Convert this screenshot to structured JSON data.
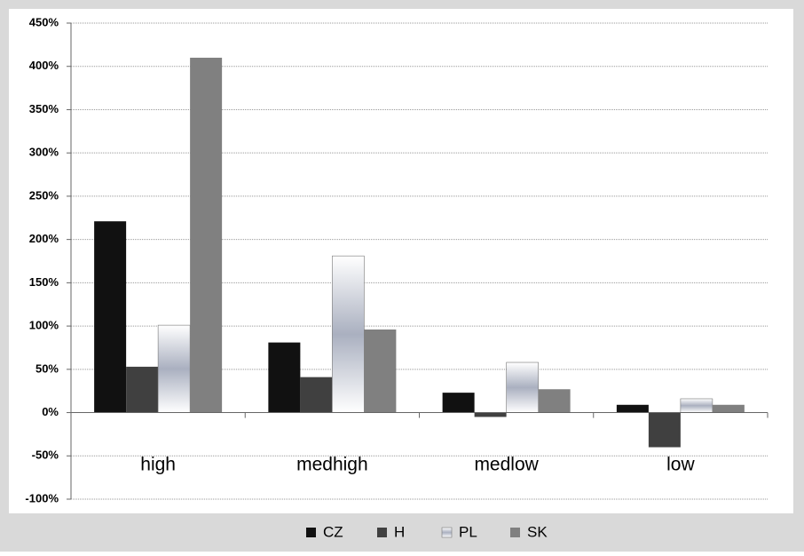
{
  "chart_data": {
    "type": "bar",
    "categories": [
      "high",
      "medhigh",
      "medlow",
      "low"
    ],
    "series": [
      {
        "name": "CZ",
        "color": "#111111",
        "values": [
          221,
          81,
          23,
          9
        ]
      },
      {
        "name": "H",
        "color": "#404040",
        "values": [
          53,
          41,
          -5,
          -40
        ]
      },
      {
        "name": "PL",
        "color": "#aab0c0",
        "values": [
          101,
          181,
          58,
          16
        ]
      },
      {
        "name": "SK",
        "color": "#808080",
        "values": [
          410,
          96,
          27,
          9
        ]
      }
    ],
    "ylim": [
      -100,
      450
    ],
    "yticks": [
      {
        "value": -100,
        "label": "-100%"
      },
      {
        "value": -50,
        "label": "-50%"
      },
      {
        "value": 0,
        "label": "0%"
      },
      {
        "value": 50,
        "label": "50%"
      },
      {
        "value": 100,
        "label": "100%"
      },
      {
        "value": 150,
        "label": "150%"
      },
      {
        "value": 200,
        "label": "200%"
      },
      {
        "value": 250,
        "label": "250%"
      },
      {
        "value": 300,
        "label": "300%"
      },
      {
        "value": 350,
        "label": "350%"
      },
      {
        "value": 400,
        "label": "400%"
      },
      {
        "value": 450,
        "label": "450%"
      }
    ],
    "grid": true,
    "legend": "bottom"
  }
}
